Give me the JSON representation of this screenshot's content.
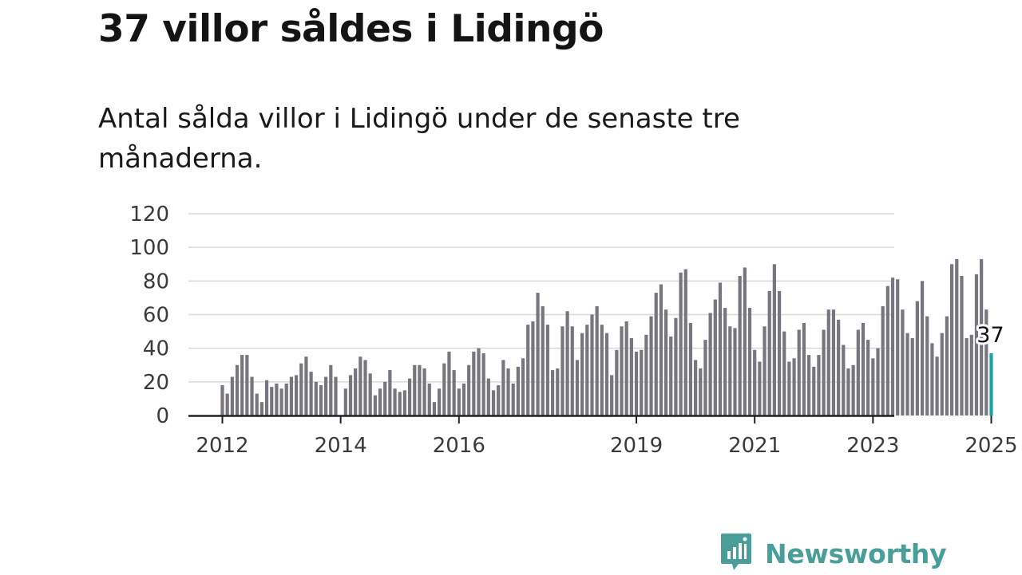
{
  "header": {
    "title": "37 villor såldes i Lidingö",
    "subtitle": "Antal sålda villor i Lidingö under de senaste tre månaderna."
  },
  "brand": {
    "name": "Newsworthy",
    "icon": "bar-chart-speech-icon",
    "color": "#4a9e9a"
  },
  "colors": {
    "bar": "#77767e",
    "highlight": "#1aa3a3",
    "grid": "#d9d9d9",
    "axis": "#222222"
  },
  "chart_data": {
    "type": "bar",
    "x_start": "2012-01",
    "frequency": "monthly",
    "ylim": [
      0,
      120
    ],
    "yticks": [
      "0",
      "20",
      "40",
      "60",
      "80",
      "100",
      "120"
    ],
    "xticks": [
      "2012",
      "2014",
      "2016",
      "2019",
      "2021",
      "2023",
      "2025"
    ],
    "grid": true,
    "highlight_last": true,
    "annotation": "37",
    "values": [
      18,
      13,
      23,
      30,
      36,
      36,
      23,
      13,
      8,
      21,
      17,
      19,
      16,
      19,
      23,
      24,
      31,
      35,
      26,
      20,
      18,
      23,
      30,
      23,
      0,
      16,
      24,
      28,
      35,
      33,
      25,
      12,
      16,
      20,
      27,
      16,
      14,
      15,
      22,
      30,
      30,
      28,
      19,
      8,
      16,
      31,
      38,
      27,
      16,
      19,
      30,
      38,
      40,
      37,
      22,
      15,
      18,
      33,
      28,
      19,
      29,
      34,
      54,
      56,
      73,
      65,
      54,
      27,
      28,
      53,
      62,
      53,
      33,
      49,
      54,
      60,
      65,
      54,
      49,
      24,
      39,
      53,
      56,
      46,
      38,
      39,
      48,
      59,
      73,
      78,
      63,
      47,
      58,
      85,
      87,
      55,
      33,
      28,
      45,
      61,
      69,
      79,
      64,
      53,
      52,
      83,
      88,
      64,
      39,
      32,
      53,
      74,
      90,
      74,
      50,
      32,
      34,
      51,
      55,
      36,
      29,
      36,
      51,
      63,
      63,
      57,
      42,
      28,
      30,
      51,
      55,
      45,
      34,
      40,
      65,
      77,
      82,
      81,
      63,
      49,
      46,
      68,
      80,
      59,
      43,
      35,
      49,
      59,
      90,
      93,
      83,
      46,
      48,
      84,
      93,
      63,
      37
    ]
  }
}
